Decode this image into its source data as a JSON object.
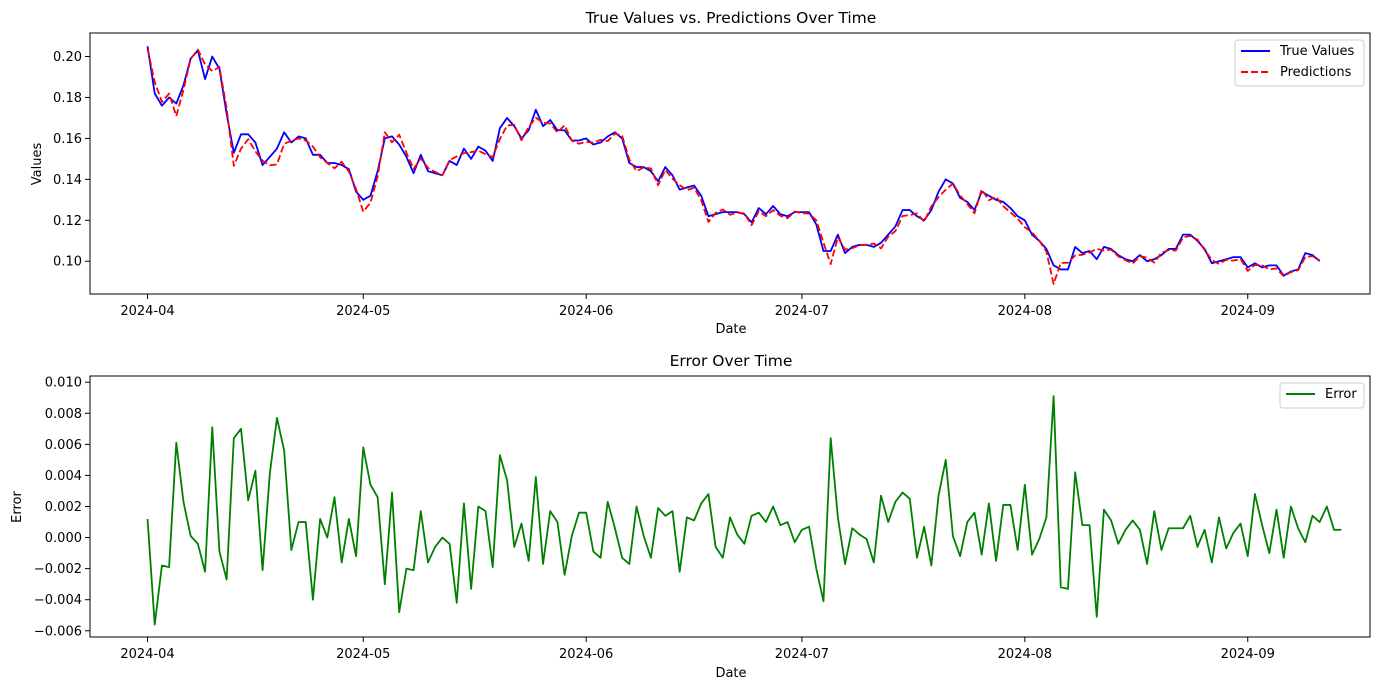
{
  "chart_data": [
    {
      "type": "line",
      "title": "True Values vs. Predictions Over Time",
      "xlabel": "Date",
      "ylabel": "Values",
      "x_start": "2024-04-01",
      "x_end": "2024-09-10",
      "xlim": [
        "2024-03-24",
        "2024-09-18"
      ],
      "ylim": [
        0.084,
        0.2115
      ],
      "x_ticks": [
        "2024-04",
        "2024-05",
        "2024-06",
        "2024-07",
        "2024-08",
        "2024-09"
      ],
      "y_ticks": [
        "0.10",
        "0.12",
        "0.14",
        "0.16",
        "0.18",
        "0.20"
      ],
      "legend": "top-right",
      "grid": false,
      "series": [
        {
          "name": "True Values",
          "color": "#0000ff",
          "style": "solid",
          "values": [
            0.205,
            0.182,
            0.176,
            0.18,
            0.177,
            0.186,
            0.199,
            0.203,
            0.189,
            0.2,
            0.194,
            0.172,
            0.153,
            0.162,
            0.162,
            0.158,
            0.147,
            0.151,
            0.155,
            0.163,
            0.158,
            0.161,
            0.16,
            0.152,
            0.152,
            0.148,
            0.148,
            0.147,
            0.145,
            0.134,
            0.13,
            0.132,
            0.144,
            0.16,
            0.161,
            0.157,
            0.151,
            0.143,
            0.152,
            0.144,
            0.143,
            0.142,
            0.149,
            0.147,
            0.155,
            0.15,
            0.156,
            0.154,
            0.149,
            0.165,
            0.17,
            0.166,
            0.16,
            0.164,
            0.174,
            0.166,
            0.169,
            0.164,
            0.164,
            0.159,
            0.159,
            0.16,
            0.157,
            0.158,
            0.161,
            0.163,
            0.16,
            0.148,
            0.146,
            0.146,
            0.144,
            0.139,
            0.146,
            0.142,
            0.135,
            0.136,
            0.137,
            0.132,
            0.122,
            0.123,
            0.124,
            0.124,
            0.124,
            0.123,
            0.119,
            0.126,
            0.123,
            0.127,
            0.123,
            0.122,
            0.124,
            0.124,
            0.124,
            0.118,
            0.105,
            0.105,
            0.113,
            0.104,
            0.107,
            0.108,
            0.108,
            0.107,
            0.109,
            0.113,
            0.117,
            0.125,
            0.125,
            0.122,
            0.12,
            0.125,
            0.134,
            0.14,
            0.138,
            0.131,
            0.129,
            0.125,
            0.134,
            0.132,
            0.13,
            0.129,
            0.126,
            0.122,
            0.12,
            0.113,
            0.11,
            0.106,
            0.098,
            0.096,
            0.096,
            0.107,
            0.104,
            0.105,
            0.101,
            0.107,
            0.106,
            0.103,
            0.101,
            0.1,
            0.103,
            0.1,
            0.101,
            0.103,
            0.106,
            0.106,
            0.113,
            0.113,
            0.11,
            0.106,
            0.099,
            0.1,
            0.101,
            0.102,
            0.102,
            0.097,
            0.099,
            0.097,
            0.098,
            0.098,
            0.093,
            0.095,
            0.096,
            0.104,
            0.103,
            0.1
          ]
        },
        {
          "name": "Predictions",
          "color": "#ff0000",
          "style": "dashed",
          "values": [
            0.2038,
            0.1876,
            0.1778,
            0.1819,
            0.1709,
            0.1837,
            0.1989,
            0.2034,
            0.1962,
            0.1929,
            0.1949,
            0.1747,
            0.1466,
            0.155,
            0.1596,
            0.1537,
            0.1491,
            0.1469,
            0.1473,
            0.1574,
            0.1588,
            0.16,
            0.159,
            0.156,
            0.1508,
            0.148,
            0.1454,
            0.1486,
            0.1438,
            0.1352,
            0.1242,
            0.1286,
            0.1414,
            0.163,
            0.1581,
            0.1618,
            0.153,
            0.1451,
            0.1503,
            0.1456,
            0.1436,
            0.142,
            0.1494,
            0.1512,
            0.1528,
            0.1533,
            0.154,
            0.1523,
            0.1509,
            0.1597,
            0.1663,
            0.1666,
            0.1591,
            0.1655,
            0.1701,
            0.1677,
            0.1673,
            0.163,
            0.1664,
            0.1589,
            0.1574,
            0.1584,
            0.1579,
            0.1593,
            0.1587,
            0.1624,
            0.1613,
            0.1497,
            0.144,
            0.1459,
            0.1453,
            0.1371,
            0.1446,
            0.1403,
            0.1372,
            0.1347,
            0.1359,
            0.1298,
            0.1192,
            0.1236,
            0.1253,
            0.1227,
            0.1238,
            0.1234,
            0.1176,
            0.1244,
            0.122,
            0.125,
            0.1222,
            0.121,
            0.1243,
            0.1235,
            0.1233,
            0.12,
            0.1091,
            0.0986,
            0.1117,
            0.1057,
            0.1064,
            0.1078,
            0.1081,
            0.1086,
            0.1063,
            0.112,
            0.1147,
            0.1221,
            0.1225,
            0.1234,
            0.1193,
            0.1268,
            0.1313,
            0.135,
            0.1379,
            0.1322,
            0.128,
            0.1234,
            0.1351,
            0.1298,
            0.1315,
            0.1269,
            0.1239,
            0.1208,
            0.1166,
            0.1141,
            0.1101,
            0.1047,
            0.0889,
            0.0992,
            0.0993,
            0.1028,
            0.1032,
            0.1042,
            0.1061,
            0.1052,
            0.1057,
            0.1024,
            0.1005,
            0.0989,
            0.1025,
            0.1017,
            0.0993,
            0.1042,
            0.1054,
            0.1052,
            0.1116,
            0.1124,
            0.1106,
            0.1055,
            0.1006,
            0.0987,
            0.1007,
            0.1003,
            0.1011,
            0.0953,
            0.0982,
            0.098,
            0.096,
            0.0965,
            0.0927,
            0.0947,
            0.0956,
            0.102,
            0.1025,
            0.1004
          ]
        }
      ]
    },
    {
      "type": "line",
      "title": "Error Over Time",
      "xlabel": "Date",
      "ylabel": "Error",
      "x_start": "2024-04-01",
      "x_end": "2024-09-10",
      "xlim": [
        "2024-03-24",
        "2024-09-18"
      ],
      "ylim": [
        -0.0064,
        0.0104
      ],
      "x_ticks": [
        "2024-04",
        "2024-05",
        "2024-06",
        "2024-07",
        "2024-08",
        "2024-09"
      ],
      "y_ticks": [
        "−0.006",
        "−0.004",
        "−0.002",
        "0.000",
        "0.002",
        "0.004",
        "0.006",
        "0.008",
        "0.010"
      ],
      "legend": "top-right",
      "grid": false,
      "series": [
        {
          "name": "Error",
          "color": "#008000",
          "style": "solid",
          "values": [
            0.0012,
            -0.0056,
            -0.0018,
            -0.0019,
            0.0061,
            0.0023,
            0.0001,
            -0.0004,
            -0.0022,
            0.0071,
            -0.0009,
            -0.0027,
            0.0064,
            0.007,
            0.0024,
            0.0043,
            -0.0021,
            0.0041,
            0.0077,
            0.0056,
            -0.0008,
            0.001,
            0.001,
            -0.004,
            0.0012,
            0.0,
            0.0026,
            -0.0016,
            0.0012,
            -0.0012,
            0.0058,
            0.0034,
            0.0026,
            -0.003,
            0.0029,
            -0.0048,
            -0.002,
            -0.0021,
            0.0017,
            -0.0016,
            -0.0006,
            0.0,
            -0.0004,
            -0.0042,
            0.0022,
            -0.0033,
            0.002,
            0.0017,
            -0.0019,
            0.0053,
            0.0037,
            -0.0006,
            0.0009,
            -0.0015,
            0.0039,
            -0.0017,
            0.0017,
            0.001,
            -0.0024,
            0.0001,
            0.0016,
            0.0016,
            -0.0009,
            -0.0013,
            0.0023,
            0.0006,
            -0.0013,
            -0.0017,
            0.002,
            0.0001,
            -0.0013,
            0.0019,
            0.0014,
            0.0017,
            -0.0022,
            0.0013,
            0.0011,
            0.0022,
            0.0028,
            -0.0006,
            -0.0013,
            0.0013,
            0.0002,
            -0.0004,
            0.0014,
            0.0016,
            0.001,
            0.002,
            0.0008,
            0.001,
            -0.0003,
            0.0005,
            0.0007,
            -0.002,
            -0.0041,
            0.0064,
            0.0013,
            -0.0017,
            0.0006,
            0.0002,
            -0.0001,
            -0.0016,
            0.0027,
            0.001,
            0.0023,
            0.0029,
            0.0025,
            -0.0013,
            0.0007,
            -0.0018,
            0.0027,
            0.005,
            0.0001,
            -0.0012,
            0.001,
            0.0016,
            -0.0011,
            0.0022,
            -0.0015,
            0.0021,
            0.0021,
            -0.0008,
            0.0034,
            -0.0011,
            -0.0001,
            0.0013,
            0.0091,
            -0.0032,
            -0.0033,
            0.0042,
            0.0008,
            0.0008,
            -0.0051,
            0.0018,
            0.0011,
            -0.0004,
            0.0005,
            0.0011,
            0.0005,
            -0.0017,
            0.0017,
            -0.0008,
            0.0006,
            0.0006,
            0.0006,
            0.0014,
            -0.0006,
            0.0005,
            -0.0016,
            0.0013,
            -0.0007,
            0.0003,
            0.0009,
            -0.0012,
            0.0028,
            0.0008,
            -0.001,
            0.0018,
            -0.0013,
            0.002,
            0.0006,
            -0.0003,
            0.0014,
            0.001,
            0.002,
            0.0005,
            0.0005
          ]
        }
      ]
    }
  ]
}
